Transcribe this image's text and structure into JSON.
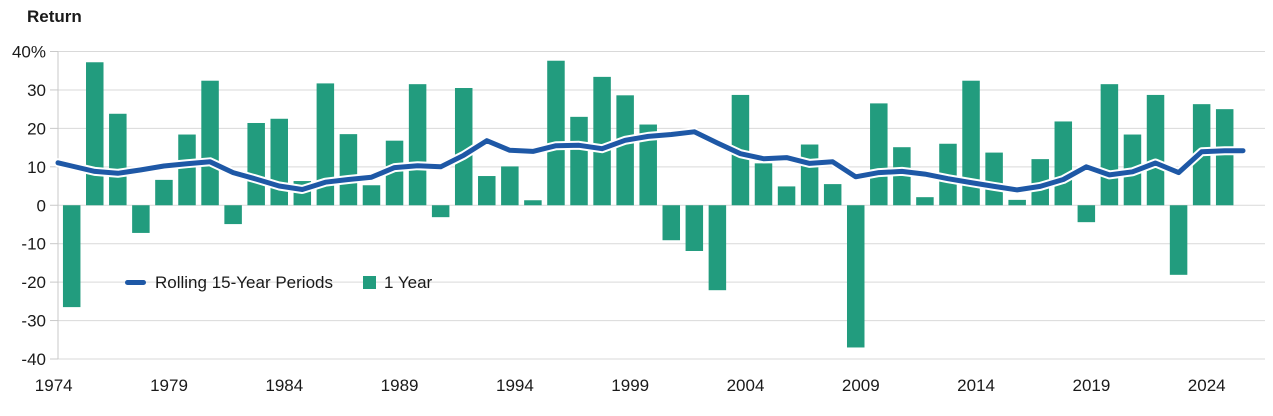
{
  "chart_data": {
    "type": "bar+line",
    "title": "Return",
    "x": [
      1974,
      1975,
      1976,
      1977,
      1978,
      1979,
      1980,
      1981,
      1982,
      1983,
      1984,
      1985,
      1986,
      1987,
      1988,
      1989,
      1990,
      1991,
      1992,
      1993,
      1994,
      1995,
      1996,
      1997,
      1998,
      1999,
      2000,
      2001,
      2002,
      2003,
      2004,
      2005,
      2006,
      2007,
      2008,
      2009,
      2010,
      2011,
      2012,
      2013,
      2014,
      2015,
      2016,
      2017,
      2018,
      2019,
      2020,
      2021,
      2022,
      2023,
      2024
    ],
    "series": [
      {
        "name": "1 Year",
        "type": "bar",
        "color": "#229C7E",
        "values": [
          -26.5,
          37.2,
          23.8,
          -7.2,
          6.6,
          18.4,
          32.4,
          -4.9,
          21.4,
          22.5,
          6.3,
          31.7,
          18.5,
          5.2,
          16.8,
          31.5,
          -3.1,
          30.5,
          7.6,
          10.1,
          1.3,
          37.6,
          23.0,
          33.4,
          28.6,
          21.0,
          -9.1,
          -11.9,
          -22.1,
          28.7,
          10.9,
          4.9,
          15.8,
          5.5,
          -37.0,
          26.5,
          15.1,
          2.1,
          16.0,
          32.4,
          13.7,
          1.4,
          12.0,
          21.8,
          -4.4,
          31.5,
          18.4,
          28.7,
          -18.1,
          26.3,
          25.0
        ]
      },
      {
        "name": "Rolling 15-Year Periods",
        "type": "line",
        "color": "#1E58A6",
        "values": [
          10.2,
          8.8,
          8.3,
          9.2,
          10.2,
          10.8,
          11.3,
          8.5,
          6.8,
          5.0,
          4.1,
          6.0,
          6.7,
          7.3,
          9.8,
          10.3,
          10.0,
          13.0,
          16.8,
          14.3,
          14.0,
          15.5,
          15.6,
          14.7,
          16.9,
          17.9,
          18.4,
          19.1,
          16.2,
          13.4,
          12.1,
          12.4,
          10.9,
          11.3,
          7.4,
          8.5,
          8.8,
          8.1,
          6.9,
          5.9,
          4.9,
          4.0,
          4.9,
          6.7,
          10.0,
          7.9,
          8.7,
          11.0,
          8.5,
          13.9,
          14.2
        ]
      }
    ],
    "ylim": [
      -40,
      40
    ],
    "y_ticks": [
      {
        "value": 40,
        "label": "40%"
      },
      {
        "value": 30,
        "label": "30"
      },
      {
        "value": 20,
        "label": "20"
      },
      {
        "value": 10,
        "label": "10"
      },
      {
        "value": 0,
        "label": "0"
      },
      {
        "value": -10,
        "label": "-10"
      },
      {
        "value": -20,
        "label": "-20"
      },
      {
        "value": -30,
        "label": "-30"
      },
      {
        "value": -40,
        "label": "-40"
      }
    ],
    "x_tick_labels": [
      "1974",
      "1979",
      "1984",
      "1989",
      "1994",
      "1999",
      "2004",
      "2009",
      "2014",
      "2019",
      "2024"
    ],
    "grid": "horizontal",
    "legend_position": "inside bottom-left"
  },
  "legend": {
    "line_label": "Rolling 15-Year Periods",
    "bar_label": "1 Year"
  },
  "colors": {
    "bar": "#229C7E",
    "line": "#1E58A6",
    "line_casing": "#FFFFFF",
    "grid": "#D9D9D9",
    "axis": "#C9C9C9",
    "text": "#1A1A1A",
    "background": "#FFFFFF"
  }
}
